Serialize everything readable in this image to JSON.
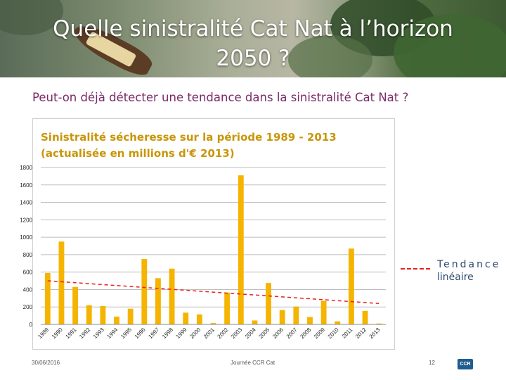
{
  "slide": {
    "title_line1": "Quelle sinistralité Cat Nat à l’horizon",
    "title_line2": "2050 ?",
    "subtitle": "Peut-on déjà détecter une tendance dans la sinistralité Cat Nat ?"
  },
  "chart_data": {
    "type": "bar",
    "title_line1": "Sinistralité sécheresse sur la période 1989 - 2013",
    "title_line2": "(actualisée en millions d'€ 2013)",
    "categories": [
      "1989",
      "1990",
      "1991",
      "1992",
      "1993",
      "1994",
      "1995",
      "1996",
      "1997",
      "1998",
      "1999",
      "2000",
      "2001",
      "2002",
      "2003",
      "2004",
      "2005",
      "2006",
      "2007",
      "2008",
      "2009",
      "2010",
      "2011",
      "2012",
      "2013"
    ],
    "values": [
      590,
      950,
      430,
      220,
      210,
      90,
      180,
      750,
      530,
      640,
      135,
      115,
      15,
      365,
      1710,
      45,
      475,
      165,
      205,
      85,
      270,
      35,
      870,
      155,
      10
    ],
    "ylim": [
      0,
      1800
    ],
    "yticks": [
      "0",
      "200",
      "400",
      "600",
      "800",
      "1000",
      "1200",
      "1400",
      "1600",
      "1800"
    ],
    "grid": true,
    "bar_color": "#f5b400",
    "trend": {
      "start": 500,
      "end": 240,
      "color": "#e8221b"
    },
    "legend_line1": "Tendance",
    "legend_line2": "linéaire"
  },
  "footer": {
    "date": "30/06/2016",
    "event": "Journée CCR Cat",
    "page": "12",
    "logo": "CCR"
  }
}
